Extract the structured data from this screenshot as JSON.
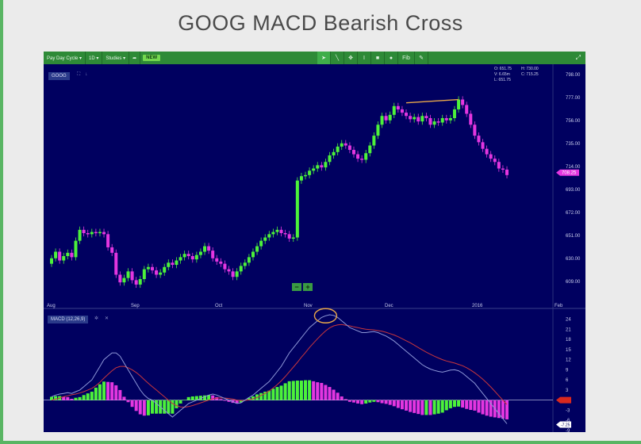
{
  "slide": {
    "title": "GOOG MACD Bearish Cross"
  },
  "toolbar": {
    "items": [
      "Pay Day Cycle ▾",
      "1D ▾",
      "Studies ▾"
    ],
    "share_icon": "share-icon",
    "new_label": "NEW",
    "tools": [
      "pointer-icon",
      "line-icon",
      "crosshair-icon",
      "text-cursor-icon",
      "square-icon",
      "circle-icon",
      "Fib",
      "eraser-icon"
    ],
    "expand_icon": "expand-icon"
  },
  "price_panel": {
    "symbol": "GOOG",
    "icons": [
      "maximize-icon",
      "pin-icon"
    ],
    "ohlc": {
      "o": "O: 651.75",
      "v": "V: 6.65m",
      "l": "L: 651.75",
      "h": "H: 730.00",
      "c": "C: 715.25"
    },
    "last_price_tag": "708.25"
  },
  "macd_panel": {
    "label": "MACD (12,26,9)",
    "icons": [
      "settings-icon",
      "close-icon"
    ],
    "tag_macd": "-7.25"
  },
  "zoom": {
    "minus": "−",
    "plus": "+"
  },
  "colors": {
    "up": "#4cf23a",
    "down": "#e436e0",
    "background": "#000060",
    "macd_line": "#8e98d8",
    "signal_line": "#c8353c",
    "annotation": "#e7a64a",
    "highlight_tag": "#d9281e"
  },
  "chart_data": {
    "type": "candlestick",
    "x_axis": {
      "labels": [
        "Aug",
        "Sep",
        "Oct",
        "Nov",
        "Dec",
        "2016",
        "Feb"
      ]
    },
    "price_axis": {
      "ylim": [
        590,
        800
      ],
      "ticks": [
        798.0,
        777.0,
        756.0,
        735.0,
        714.0,
        693.0,
        672.0,
        651.0,
        630.0,
        609.0
      ]
    },
    "macd_axis": {
      "ylim": [
        -9,
        26
      ],
      "ticks": [
        24,
        21,
        18,
        15,
        12,
        9,
        6,
        3,
        0,
        -3,
        -6,
        -9
      ]
    },
    "closes": [
      630,
      636,
      628,
      632,
      635,
      631,
      646,
      656,
      653,
      652,
      654,
      653,
      654,
      652,
      640,
      635,
      615,
      608,
      612,
      618,
      610,
      606,
      611,
      620,
      622,
      619,
      615,
      617,
      622,
      626,
      624,
      628,
      631,
      634,
      632,
      629,
      633,
      636,
      641,
      637,
      630,
      627,
      625,
      620,
      618,
      613,
      618,
      623,
      626,
      631,
      636,
      641,
      646,
      649,
      652,
      654,
      656,
      653,
      652,
      648,
      649,
      701,
      705,
      706,
      710,
      712,
      715,
      713,
      718,
      724,
      727,
      732,
      735,
      733,
      729,
      725,
      721,
      720,
      726,
      733,
      742,
      752,
      760,
      756,
      761,
      769,
      766,
      763,
      760,
      757,
      759,
      755,
      760,
      758,
      752,
      755,
      754,
      758,
      756,
      758,
      766,
      775,
      770,
      762,
      752,
      742,
      736,
      730,
      725,
      721,
      718,
      712,
      711,
      706
    ],
    "opens": [
      625,
      630,
      636,
      628,
      632,
      635,
      631,
      646,
      656,
      653,
      652,
      654,
      653,
      654,
      652,
      640,
      635,
      615,
      608,
      612,
      618,
      610,
      606,
      611,
      620,
      622,
      619,
      615,
      617,
      622,
      626,
      624,
      628,
      631,
      634,
      632,
      629,
      633,
      636,
      641,
      637,
      630,
      627,
      625,
      620,
      618,
      613,
      618,
      623,
      626,
      631,
      636,
      641,
      646,
      649,
      652,
      654,
      656,
      653,
      652,
      648,
      649,
      701,
      705,
      706,
      710,
      712,
      715,
      713,
      718,
      724,
      727,
      732,
      735,
      733,
      729,
      725,
      721,
      720,
      726,
      733,
      742,
      752,
      760,
      756,
      761,
      769,
      766,
      763,
      760,
      757,
      759,
      755,
      760,
      758,
      752,
      755,
      754,
      758,
      756,
      758,
      766,
      775,
      770,
      762,
      752,
      742,
      736,
      730,
      725,
      721,
      718,
      712,
      711
    ],
    "macd_line": [
      1,
      1.5,
      1.8,
      2,
      2.2,
      2,
      2.5,
      3,
      4,
      5,
      6,
      8,
      10,
      12,
      13,
      14,
      14,
      13,
      11,
      9,
      7,
      5,
      3,
      1.5,
      0.5,
      0,
      -1,
      -2,
      -3,
      -4,
      -5,
      -4,
      -3,
      -2,
      -1,
      -0.5,
      0,
      0.5,
      1,
      1.5,
      1.8,
      1.5,
      1,
      0.5,
      0,
      -0.5,
      -1,
      -0.8,
      0,
      0.8,
      1.5,
      2.5,
      3.5,
      4.5,
      5.5,
      7,
      8.5,
      10,
      12,
      14,
      15.5,
      17,
      18.5,
      20,
      21.5,
      22.5,
      23.5,
      24.5,
      25,
      25.3,
      25.1,
      24.5,
      23.5,
      22.5,
      21.5,
      21,
      20.5,
      20,
      20,
      20.2,
      20.3,
      20,
      19.5,
      19,
      18.3,
      17.5,
      16.5,
      15.5,
      14.5,
      13.5,
      12.5,
      11.5,
      10.5,
      9.8,
      9.2,
      8.8,
      8.5,
      8.3,
      8.6,
      8.9,
      9,
      8.7,
      8,
      7,
      6,
      5,
      3.5,
      2,
      0.5,
      -1,
      -2.5,
      -4,
      -5.5,
      -7
    ],
    "signal_line": [
      0,
      0.3,
      0.6,
      1,
      1.3,
      1.6,
      1.8,
      2.1,
      2.5,
      3,
      3.5,
      4.3,
      5.3,
      6.5,
      7.6,
      8.7,
      9.6,
      10,
      10,
      9.6,
      9,
      8.2,
      7.2,
      6.1,
      5,
      4,
      3,
      2,
      1,
      0,
      -1,
      -1.6,
      -2,
      -2.1,
      -1.9,
      -1.6,
      -1.2,
      -0.8,
      -0.4,
      0,
      0.4,
      0.6,
      0.7,
      0.6,
      0.5,
      0.3,
      0,
      -0.1,
      -0.1,
      0.1,
      0.4,
      0.8,
      1.4,
      2,
      2.7,
      3.6,
      4.6,
      5.7,
      7,
      8.4,
      9.8,
      11.2,
      12.7,
      14.1,
      15.6,
      16.9,
      18.2,
      19.4,
      20.5,
      21.4,
      22,
      22.3,
      22.4,
      22.2,
      22,
      21.7,
      21.5,
      21.2,
      21,
      20.9,
      20.8,
      20.6,
      20.4,
      20.1,
      19.7,
      19.3,
      18.8,
      18.2,
      17.6,
      17,
      16.3,
      15.6,
      14.9,
      14.2,
      13.6,
      13,
      12.5,
      12,
      11.6,
      11.3,
      11,
      10.6,
      10.2,
      9.6,
      8.9,
      8.1,
      7.2,
      6.2,
      5.1,
      3.9,
      2.6,
      1.3,
      0,
      -1.3
    ],
    "annotations": [
      {
        "type": "trendline",
        "from": [
          21,
          772
        ],
        "to": [
          34,
          775
        ]
      },
      {
        "type": "circle",
        "at": [
          68,
          25
        ]
      }
    ]
  }
}
